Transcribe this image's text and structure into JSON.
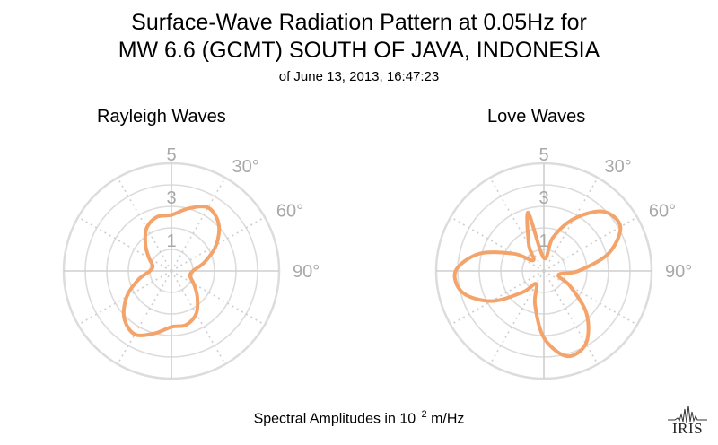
{
  "title_line1": "Surface-Wave Radiation Pattern at 0.05Hz for",
  "title_line2": "MW 6.6 (GCMT) SOUTH OF JAVA, INDONESIA",
  "subtitle": "of June 13, 2013, 16:47:23",
  "footer": {
    "prefix": "Spectral Amplitudes in 10",
    "exponent": "−2",
    "suffix": " m/Hz"
  },
  "logo_text": "IRIS",
  "colors": {
    "pattern": "#f4a46a",
    "grid_circle": "#dcdcdc",
    "grid_spoke": "#cfcfcf",
    "label": "#a8a8a8"
  },
  "chart_data": [
    {
      "type": "polar-line",
      "title": "Rayleigh Waves",
      "radial_ticks": [
        1,
        3,
        5
      ],
      "angle_tick_labels": [
        "30°",
        "60°",
        "90°"
      ],
      "r_max": 5,
      "grid_angles_deg": [
        0,
        30,
        60,
        90,
        120,
        150,
        180,
        210,
        240,
        270,
        300,
        330
      ],
      "series": [
        {
          "theta_deg": [
            0,
            15,
            30,
            45,
            60,
            75,
            90,
            105,
            120,
            135,
            150,
            165,
            180,
            195,
            210,
            225,
            240,
            255,
            270,
            285,
            300,
            315,
            330,
            345
          ],
          "r": [
            2.6,
            3.0,
            3.4,
            3.1,
            2.4,
            1.6,
            1.0,
            0.9,
            1.2,
            1.7,
            2.3,
            2.6,
            2.6,
            3.0,
            3.4,
            3.1,
            2.4,
            1.6,
            1.0,
            0.9,
            1.2,
            1.7,
            2.3,
            2.6
          ]
        }
      ]
    },
    {
      "type": "polar-line",
      "title": "Love Waves",
      "radial_ticks": [
        1,
        3,
        5
      ],
      "angle_tick_labels": [
        "30°",
        "60°",
        "90°"
      ],
      "r_max": 5,
      "grid_angles_deg": [
        0,
        30,
        60,
        90,
        120,
        150,
        180,
        210,
        240,
        270,
        300,
        330
      ],
      "series": [
        {
          "theta_deg": [
            0,
            15,
            30,
            45,
            60,
            75,
            90,
            105,
            120,
            135,
            150,
            165,
            180,
            195,
            210,
            225,
            240,
            255,
            270,
            285,
            300,
            315,
            330,
            345
          ],
          "r": [
            0.6,
            1.6,
            2.8,
            3.9,
            4.1,
            3.1,
            1.6,
            0.7,
            1.4,
            2.8,
            3.9,
            4.1,
            3.1,
            1.6,
            0.7,
            1.4,
            2.8,
            3.9,
            4.1,
            3.1,
            1.6,
            0.7,
            1.4,
            2.8
          ]
        }
      ]
    }
  ]
}
